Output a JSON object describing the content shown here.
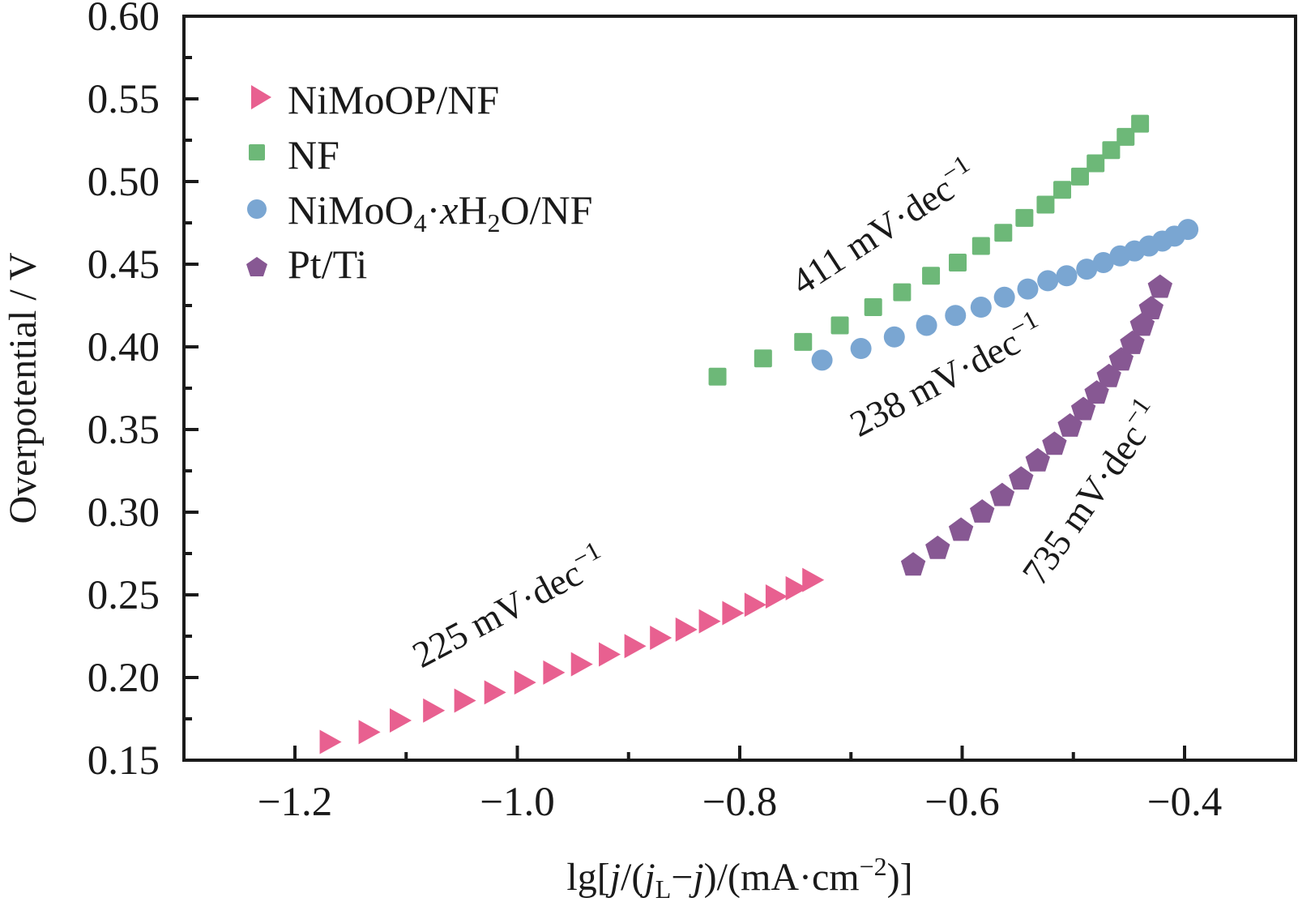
{
  "chart_data": {
    "type": "scatter",
    "title": "",
    "xlabel": "lg[j/(jL−j)/(mA·cm−2)]",
    "xlabel_parts": {
      "pre": "lg[",
      "j1": "j",
      "mid1": "/(",
      "j2": "j",
      "sub": "L",
      "mid2": "−",
      "j3": "j",
      "mid3": ")/(mA·cm",
      "sup": "−2",
      "post": ")]"
    },
    "ylabel": "Overpotential / V",
    "xlim": [
      -1.3,
      -0.35
    ],
    "ylim": [
      0.15,
      0.6
    ],
    "x_ticks": [
      -1.2,
      -1.0,
      -0.8,
      -0.6,
      -0.4
    ],
    "x_tick_labels": [
      "−1.2",
      "−1.0",
      "−0.8",
      "−0.6",
      "−0.4"
    ],
    "x_minor_ticks": [
      -1.1,
      -0.9,
      -0.7,
      -0.5
    ],
    "y_ticks": [
      0.15,
      0.2,
      0.25,
      0.3,
      0.35,
      0.4,
      0.45,
      0.5,
      0.55,
      0.6
    ],
    "y_tick_labels": [
      "0.15",
      "0.20",
      "0.25",
      "0.30",
      "0.35",
      "0.40",
      "0.45",
      "0.50",
      "0.55",
      "0.60"
    ],
    "y_minor_ticks": [
      0.175,
      0.225,
      0.275,
      0.325,
      0.375,
      0.425,
      0.475,
      0.525,
      0.575
    ],
    "grid": false,
    "legend_position": "top-left",
    "series": [
      {
        "name": "NiMoOP/NF",
        "label_parts": {
          "text": "NiMoOP/NF"
        },
        "marker": "triangle-right",
        "color": "#e86090",
        "x": [
          -1.169,
          -1.134,
          -1.106,
          -1.076,
          -1.048,
          -1.021,
          -0.994,
          -0.968,
          -0.943,
          -0.918,
          -0.895,
          -0.872,
          -0.849,
          -0.828,
          -0.807,
          -0.787,
          -0.768,
          -0.75,
          -0.735
        ],
        "y": [
          0.161,
          0.167,
          0.174,
          0.18,
          0.186,
          0.191,
          0.197,
          0.203,
          0.208,
          0.214,
          0.219,
          0.224,
          0.229,
          0.234,
          0.239,
          0.244,
          0.249,
          0.254,
          0.259
        ]
      },
      {
        "name": "NF",
        "label_parts": {
          "text": "NF"
        },
        "marker": "square",
        "color": "#6db878",
        "x": [
          -0.82,
          -0.779,
          -0.743,
          -0.71,
          -0.68,
          -0.654,
          -0.628,
          -0.604,
          -0.583,
          -0.563,
          -0.544,
          -0.525,
          -0.51,
          -0.494,
          -0.48,
          -0.466,
          -0.453,
          -0.44
        ],
        "y": [
          0.382,
          0.393,
          0.403,
          0.413,
          0.424,
          0.433,
          0.443,
          0.451,
          0.461,
          0.469,
          0.478,
          0.486,
          0.495,
          0.503,
          0.511,
          0.519,
          0.527,
          0.535
        ]
      },
      {
        "name": "NiMoO4·xH2O/NF",
        "label_parts": {
          "a": "NiMoO",
          "s1": "4",
          "b": "·",
          "x": "x",
          "c": "H",
          "s2": "2",
          "d": "O/NF"
        },
        "marker": "circle",
        "color": "#7aa6d2",
        "x": [
          -0.726,
          -0.691,
          -0.661,
          -0.632,
          -0.606,
          -0.583,
          -0.562,
          -0.541,
          -0.523,
          -0.506,
          -0.488,
          -0.473,
          -0.458,
          -0.445,
          -0.432,
          -0.42,
          -0.409,
          -0.397
        ],
        "y": [
          0.392,
          0.399,
          0.406,
          0.413,
          0.419,
          0.424,
          0.43,
          0.435,
          0.44,
          0.443,
          0.447,
          0.451,
          0.455,
          0.458,
          0.461,
          0.464,
          0.467,
          0.471
        ]
      },
      {
        "name": "Pt/Ti",
        "label_parts": {
          "a": "Pt",
          "b": "/Ti"
        },
        "marker": "pentagon",
        "color": "#875893",
        "x": [
          -0.644,
          -0.622,
          -0.601,
          -0.582,
          -0.564,
          -0.547,
          -0.532,
          -0.517,
          -0.503,
          -0.491,
          -0.479,
          -0.468,
          -0.457,
          -0.447,
          -0.438,
          -0.43,
          -0.422
        ],
        "y": [
          0.268,
          0.278,
          0.289,
          0.3,
          0.31,
          0.32,
          0.331,
          0.341,
          0.352,
          0.362,
          0.372,
          0.382,
          0.392,
          0.402,
          0.413,
          0.423,
          0.436
        ]
      }
    ],
    "annotations": [
      {
        "series": "NiMoOP/NF",
        "value": "225",
        "unit": " mV·dec",
        "sup": "−1"
      },
      {
        "series": "NF",
        "value": "411",
        "unit": " mV·dec",
        "sup": "−1"
      },
      {
        "series": "NiMoO4·xH2O/NF",
        "value": "238",
        "unit": " mV·dec",
        "sup": "−1"
      },
      {
        "series": "Pt/Ti",
        "value": "735",
        "unit": " mV·dec",
        "sup": "−1"
      }
    ]
  }
}
